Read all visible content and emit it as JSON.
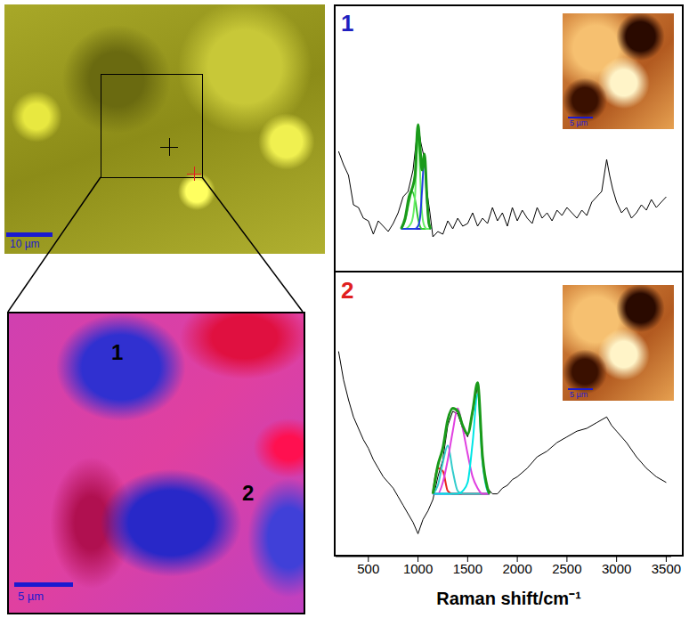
{
  "micrograph": {
    "scale_bar": "10 µm"
  },
  "map": {
    "labels": [
      "1",
      "2"
    ],
    "scale_bar": "5 µm"
  },
  "insets": {
    "scale_bar": "5 µm"
  },
  "chart_data": [
    {
      "type": "line",
      "title": "1",
      "xlim": [
        170,
        3550
      ],
      "xticks": [
        500,
        1000,
        1500,
        2000,
        2500,
        3000,
        3500
      ],
      "ylim": [
        0,
        100
      ],
      "tick_labels": false,
      "series": [
        {
          "color": "#000000",
          "x": [
            200,
            250,
            300,
            350,
            400,
            450,
            500,
            550,
            600,
            650,
            700,
            750,
            800,
            850,
            900,
            950,
            1000,
            1030,
            1060,
            1090,
            1120,
            1150,
            1200,
            1250,
            1300,
            1350,
            1400,
            1450,
            1500,
            1550,
            1600,
            1650,
            1700,
            1750,
            1800,
            1850,
            1900,
            1950,
            2000,
            2050,
            2100,
            2150,
            2200,
            2250,
            2300,
            2350,
            2400,
            2450,
            2500,
            2550,
            2600,
            2650,
            2700,
            2750,
            2800,
            2850,
            2900,
            2930,
            2960,
            3000,
            3050,
            3100,
            3150,
            3200,
            3250,
            3300,
            3350,
            3400,
            3450,
            3500
          ],
          "values": [
            45,
            40,
            36,
            25,
            24,
            20,
            19,
            14,
            19,
            17,
            15,
            18,
            22,
            28,
            30,
            38,
            55,
            48,
            43,
            30,
            22,
            13,
            15,
            14,
            19,
            16,
            20,
            17,
            18,
            22,
            17,
            20,
            18,
            24,
            19,
            22,
            17,
            24,
            19,
            23,
            20,
            18,
            24,
            20,
            22,
            19,
            23,
            21,
            24,
            22,
            20,
            23,
            21,
            26,
            28,
            30,
            42,
            36,
            31,
            26,
            22,
            24,
            20,
            22,
            25,
            23,
            27,
            24,
            26,
            28
          ]
        },
        {
          "color": "#2222cc",
          "x": [
            830,
            1130
          ],
          "values": [
            16,
            16
          ]
        },
        {
          "color": "#33cc33",
          "x": [
            830,
            870,
            910,
            940,
            970,
            1000,
            1020,
            1040,
            1065,
            1090,
            1110,
            1130
          ],
          "values": [
            16,
            19,
            26,
            30,
            27,
            20,
            17,
            16,
            16,
            16,
            16,
            16
          ]
        },
        {
          "color": "#66ee66",
          "x": [
            830,
            870,
            910,
            940,
            970,
            1000,
            1020,
            1040,
            1065,
            1090,
            1110,
            1130
          ],
          "values": [
            16,
            16,
            17,
            19,
            28,
            52,
            38,
            22,
            17,
            16,
            16,
            16
          ]
        },
        {
          "color": "#1f3fe0",
          "x": [
            830,
            870,
            910,
            940,
            970,
            1000,
            1020,
            1040,
            1065,
            1090,
            1110,
            1130
          ],
          "values": [
            16,
            16,
            16,
            16,
            16,
            17,
            20,
            30,
            43,
            27,
            18,
            16
          ]
        },
        {
          "color": "#1a9a1a",
          "x": [
            830,
            870,
            910,
            940,
            970,
            1000,
            1020,
            1040,
            1065,
            1090,
            1110,
            1130
          ],
          "values": [
            16,
            20,
            28,
            31,
            36,
            55,
            47,
            38,
            44,
            28,
            18,
            16
          ]
        }
      ]
    },
    {
      "type": "line",
      "title": "2",
      "xlabel": "Raman shift/cm⁻¹",
      "xlim": [
        170,
        3550
      ],
      "xticks": [
        500,
        1000,
        1500,
        2000,
        2500,
        3000,
        3500
      ],
      "ylim": [
        0,
        100
      ],
      "tick_labels": "x",
      "series": [
        {
          "color": "#000000",
          "x": [
            200,
            250,
            300,
            350,
            400,
            450,
            500,
            550,
            600,
            650,
            700,
            750,
            800,
            850,
            900,
            950,
            1000,
            1050,
            1100,
            1150,
            1200,
            1250,
            1300,
            1350,
            1400,
            1450,
            1500,
            1550,
            1600,
            1630,
            1660,
            1700,
            1750,
            1800,
            1850,
            1900,
            1950,
            2000,
            2100,
            2200,
            2300,
            2400,
            2500,
            2600,
            2700,
            2800,
            2900,
            2950,
            3000,
            3100,
            3200,
            3300,
            3400,
            3500
          ],
          "values": [
            72,
            62,
            55,
            49,
            45,
            41,
            38,
            34,
            31,
            28,
            26,
            24,
            21,
            18,
            15,
            12,
            8,
            13,
            16,
            20,
            28,
            34,
            46,
            51,
            50,
            45,
            42,
            50,
            60,
            48,
            30,
            24,
            22,
            22,
            24,
            25,
            27,
            28,
            31,
            35,
            37,
            40,
            42,
            44,
            45,
            47,
            49,
            46,
            44,
            40,
            35,
            31,
            28,
            26
          ]
        },
        {
          "color": "#2222cc",
          "x": [
            1150,
            1720
          ],
          "values": [
            22,
            22
          ]
        },
        {
          "color": "#e8261f",
          "x": [
            1150,
            1200,
            1250,
            1300,
            1350,
            1400,
            1450,
            1500,
            1550,
            1600,
            1650,
            1700,
            1720
          ],
          "values": [
            22,
            31,
            30,
            23,
            22,
            22,
            22,
            22,
            22,
            22,
            22,
            22,
            22
          ]
        },
        {
          "color": "#33cccc",
          "x": [
            1150,
            1200,
            1250,
            1300,
            1350,
            1400,
            1450,
            1500,
            1550,
            1600,
            1650,
            1700,
            1720
          ],
          "values": [
            22,
            25,
            33,
            39,
            30,
            23,
            22,
            22,
            22,
            22,
            22,
            22,
            22
          ]
        },
        {
          "color": "#e040e0",
          "x": [
            1150,
            1200,
            1250,
            1300,
            1350,
            1400,
            1450,
            1500,
            1550,
            1600,
            1650,
            1700,
            1720
          ],
          "values": [
            22,
            22,
            26,
            34,
            44,
            52,
            45,
            36,
            28,
            24,
            22,
            22,
            22
          ]
        },
        {
          "color": "#00e5e5",
          "x": [
            1150,
            1200,
            1250,
            1300,
            1350,
            1400,
            1450,
            1500,
            1550,
            1600,
            1650,
            1700,
            1720
          ],
          "values": [
            22,
            22,
            22,
            22,
            22,
            22,
            23,
            26,
            40,
            57,
            33,
            23,
            22
          ]
        },
        {
          "color": "#1a9a1a",
          "x": [
            1150,
            1200,
            1250,
            1300,
            1350,
            1400,
            1450,
            1500,
            1550,
            1600,
            1650,
            1700,
            1720
          ],
          "values": [
            22,
            32,
            38,
            48,
            52,
            51,
            46,
            43,
            51,
            61,
            35,
            24,
            22
          ]
        }
      ]
    }
  ]
}
